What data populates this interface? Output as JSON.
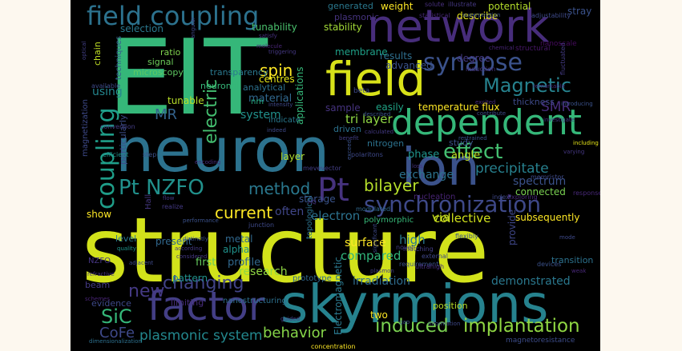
{
  "canvas": {
    "background": "#000000",
    "page_background": "#fdf8ef"
  },
  "words": [
    {
      "text": "structure",
      "color": "#d2e21b"
    },
    {
      "text": "neuron",
      "color": "#2c728e"
    },
    {
      "text": "EIT",
      "color": "#35b779"
    },
    {
      "text": "network",
      "color": "#472d7b"
    },
    {
      "text": "skyrmions",
      "color": "#26828e"
    },
    {
      "text": "field",
      "color": "#d8e219"
    },
    {
      "text": "ion",
      "color": "#3b528b"
    },
    {
      "text": "dependent",
      "color": "#35b779"
    },
    {
      "text": "factor",
      "color": "#433e85"
    },
    {
      "text": "Pt",
      "color": "#46327e"
    },
    {
      "text": "field coupling",
      "color": "#2c728e"
    },
    {
      "text": "synchronization",
      "color": "#3e4989"
    },
    {
      "text": "synapse",
      "color": "#3b528b"
    },
    {
      "text": "Magnetic",
      "color": "#26828e"
    },
    {
      "text": "effect",
      "color": "#44bf70"
    },
    {
      "text": "coupling",
      "color": "#1f9e89"
    },
    {
      "text": "Pt NZFO",
      "color": "#21918c"
    },
    {
      "text": "induced",
      "color": "#7ad151"
    },
    {
      "text": "implantation",
      "color": "#90d743"
    },
    {
      "text": "changing",
      "color": "#414487"
    },
    {
      "text": "new",
      "color": "#443983"
    },
    {
      "text": "bilayer",
      "color": "#b5de2b"
    },
    {
      "text": "current",
      "color": "#fde725"
    },
    {
      "text": "method",
      "color": "#2a788e"
    },
    {
      "text": "electric",
      "color": "#44bf70"
    },
    {
      "text": "spin",
      "color": "#fde725"
    },
    {
      "text": "behavior",
      "color": "#86d549"
    },
    {
      "text": "SiC",
      "color": "#35b779"
    },
    {
      "text": "CoFe",
      "color": "#3e4989"
    },
    {
      "text": "plasmonic system",
      "color": "#23888e"
    },
    {
      "text": "precipitate",
      "color": "#27808e"
    },
    {
      "text": "spectrum",
      "color": "#3b528b"
    },
    {
      "text": "MR",
      "color": "#33638d"
    },
    {
      "text": "SMR",
      "color": "#472d7b"
    },
    {
      "text": "tri layer",
      "color": "#8fd744"
    },
    {
      "text": "exchange",
      "color": "#2c728e"
    },
    {
      "text": "high",
      "color": "#2a788e"
    },
    {
      "text": "collective",
      "color": "#d0e11c"
    },
    {
      "text": "using",
      "color": "#24868e"
    },
    {
      "text": "surface",
      "color": "#fde725"
    },
    {
      "text": "compared",
      "color": "#32b67a"
    },
    {
      "text": "electron",
      "color": "#2c728e"
    },
    {
      "text": "via",
      "color": "#c5e021"
    },
    {
      "text": "often",
      "color": "#404688"
    },
    {
      "text": "research",
      "color": "#90d743"
    },
    {
      "text": "irradiation",
      "color": "#2f6c8e"
    },
    {
      "text": "demonstrated",
      "color": "#2a788e"
    },
    {
      "text": "tunable",
      "color": "#b8de29"
    },
    {
      "text": "system",
      "color": "#21918c"
    },
    {
      "text": "material",
      "color": "#31688e"
    },
    {
      "text": "applications",
      "color": "#35b779"
    },
    {
      "text": "centres",
      "color": "#e2e418"
    },
    {
      "text": "results",
      "color": "#2e6f8e"
    },
    {
      "text": "advanced",
      "color": "#3b528b"
    },
    {
      "text": "degree",
      "color": "#443983"
    },
    {
      "text": "sample",
      "color": "#46337f"
    },
    {
      "text": "easily",
      "color": "#20a386"
    },
    {
      "text": "temperature flux",
      "color": "#fde725"
    },
    {
      "text": "phase",
      "color": "#1f948c"
    },
    {
      "text": "angle",
      "color": "#c2df23"
    },
    {
      "text": "storage",
      "color": "#3a548c"
    },
    {
      "text": "present",
      "color": "#31688e"
    },
    {
      "text": "first",
      "color": "#65cb5e"
    },
    {
      "text": "profile",
      "color": "#31688e"
    },
    {
      "text": "pattern",
      "color": "#21918c"
    },
    {
      "text": "metal",
      "color": "#31688e"
    },
    {
      "text": "alpha",
      "color": "#20928c"
    },
    {
      "text": "show",
      "color": "#fde725"
    },
    {
      "text": "level",
      "color": "#2a788e"
    },
    {
      "text": "beam",
      "color": "#443a83"
    },
    {
      "text": "evidence",
      "color": "#3e4989"
    },
    {
      "text": "limiting",
      "color": "#472c7a"
    },
    {
      "text": "Electromagnetic",
      "color": "#2a788e"
    },
    {
      "text": "provide",
      "color": "#3f4788"
    },
    {
      "text": "transition",
      "color": "#2c728e"
    },
    {
      "text": "subsequently",
      "color": "#fde725"
    },
    {
      "text": "connected",
      "color": "#7ad151"
    },
    {
      "text": "nucleation",
      "color": "#482475"
    },
    {
      "text": "position",
      "color": "#b8de29"
    },
    {
      "text": "two",
      "color": "#fde725"
    },
    {
      "text": "nanostructuring",
      "color": "#2d708e"
    },
    {
      "text": "selection",
      "color": "#2a788e"
    },
    {
      "text": "tunability",
      "color": "#4ac16d"
    },
    {
      "text": "stability",
      "color": "#a2da37"
    },
    {
      "text": "membrane",
      "color": "#1fa088"
    },
    {
      "text": "generated",
      "color": "#2a788e"
    },
    {
      "text": "weight",
      "color": "#fde725"
    },
    {
      "text": "plasmonic",
      "color": "#46337f"
    },
    {
      "text": "describe",
      "color": "#e5e419"
    },
    {
      "text": "potential",
      "color": "#b5de2b"
    },
    {
      "text": "stray",
      "color": "#3b528b"
    },
    {
      "text": "ratio",
      "color": "#7fd34e"
    },
    {
      "text": "signal",
      "color": "#6ccd5a"
    },
    {
      "text": "microscopy",
      "color": "#5ec962"
    },
    {
      "text": "techniques",
      "color": "#365c8d"
    },
    {
      "text": "chain",
      "color": "#c0df25"
    },
    {
      "text": "nm",
      "color": "#27ad81"
    },
    {
      "text": "analytical",
      "color": "#2c728e"
    },
    {
      "text": "thickness",
      "color": "#3e4a89"
    },
    {
      "text": "neuronal",
      "color": "#35b779"
    },
    {
      "text": "transparency",
      "color": "#2a788e"
    },
    {
      "text": "nitrogen",
      "color": "#2c728e"
    },
    {
      "text": "study",
      "color": "#3b528b"
    },
    {
      "text": "driven",
      "color": "#2c728e"
    },
    {
      "text": "indicate",
      "color": "#29798e"
    },
    {
      "text": "layer",
      "color": "#b2dd2d"
    },
    {
      "text": "particularly",
      "color": "#3d4e8a"
    },
    {
      "text": "polymorphic",
      "color": "#37b878"
    },
    {
      "text": "NZFO",
      "color": "#453581"
    },
    {
      "text": "magnetization",
      "color": "#3e4a89"
    },
    {
      "text": "Hall",
      "color": "#453781"
    },
    {
      "text": "prototype",
      "color": "#31688e"
    },
    {
      "text": "topological",
      "color": "#2c728e"
    },
    {
      "text": "available",
      "color": "#3e4989"
    },
    {
      "text": "conversion",
      "color": "#433d84"
    },
    {
      "text": "efficient",
      "color": "#21918c"
    },
    {
      "text": "quality",
      "color": "#1f968b"
    },
    {
      "text": "optical",
      "color": "#423f85"
    },
    {
      "text": "statistical",
      "color": "#482979"
    },
    {
      "text": "superposition",
      "color": "#3b528b"
    },
    {
      "text": "adjustability",
      "color": "#3e4a89"
    },
    {
      "text": "solute",
      "color": "#472f7d"
    },
    {
      "text": "illustrate",
      "color": "#453882"
    },
    {
      "text": "fluctuated",
      "color": "#443b84"
    },
    {
      "text": "structural",
      "color": "#481769"
    },
    {
      "text": "nanoscale",
      "color": "#460b5e"
    },
    {
      "text": "induction",
      "color": "#46327e"
    },
    {
      "text": "chemical",
      "color": "#482576"
    },
    {
      "text": "beta",
      "color": "#3e4a89"
    },
    {
      "text": "magnetoresistance",
      "color": "#3d4d8a"
    },
    {
      "text": "dimensionalization",
      "color": "#2d708e"
    },
    {
      "text": "concentration",
      "color": "#fde725"
    },
    {
      "text": "requirement",
      "color": "#3a538b"
    },
    {
      "text": "matching",
      "color": "#433d84"
    },
    {
      "text": "external",
      "color": "#3f4788"
    },
    {
      "text": "ultrahigh",
      "color": "#472e7c"
    },
    {
      "text": "devices",
      "color": "#3b528b"
    },
    {
      "text": "memristor",
      "color": "#3e4a89"
    },
    {
      "text": "response",
      "color": "#482878"
    },
    {
      "text": "index",
      "color": "#3f4889"
    },
    {
      "text": "Exploring",
      "color": "#482979"
    },
    {
      "text": "modulated",
      "color": "#31688e"
    },
    {
      "text": "junction",
      "color": "#3e4a89"
    },
    {
      "text": "performance",
      "color": "#3b528b"
    },
    {
      "text": "realize",
      "color": "#443983"
    },
    {
      "text": "encoding",
      "color": "#472d7b"
    },
    {
      "text": "step",
      "color": "#3b528b"
    },
    {
      "text": "polaritons",
      "color": "#3e4989"
    },
    {
      "text": "mevevector",
      "color": "#433e85"
    },
    {
      "text": "flexibly",
      "color": "#3b528b"
    },
    {
      "text": "novel",
      "color": "#433e85"
    },
    {
      "text": "significant",
      "color": "#3e4989"
    },
    {
      "text": "according",
      "color": "#443983"
    },
    {
      "text": "adjacent",
      "color": "#3e4a89"
    },
    {
      "text": "distinctly",
      "color": "#3b528b"
    },
    {
      "text": "considered",
      "color": "#453882"
    },
    {
      "text": "refractive",
      "color": "#46337f"
    },
    {
      "text": "schemes",
      "color": "#482475"
    },
    {
      "text": "guided",
      "color": "#433e85"
    },
    {
      "text": "mode",
      "color": "#3e4989"
    },
    {
      "text": "weak",
      "color": "#482878"
    },
    {
      "text": "introducing",
      "color": "#3b528b"
    },
    {
      "text": "varying",
      "color": "#453781"
    },
    {
      "text": "including",
      "color": "#e5e419"
    },
    {
      "text": "investigate",
      "color": "#443983"
    },
    {
      "text": "excited",
      "color": "#472d7b"
    },
    {
      "text": "contribute",
      "color": "#3e4a89"
    },
    {
      "text": "described",
      "color": "#3b528b"
    },
    {
      "text": "calculated",
      "color": "#443a83"
    },
    {
      "text": "intensity",
      "color": "#3e4989"
    },
    {
      "text": "satisfy",
      "color": "#46327e"
    },
    {
      "text": "angular",
      "color": "#3f4889"
    },
    {
      "text": "triggering",
      "color": "#453882"
    },
    {
      "text": "molecule",
      "color": "#482576"
    },
    {
      "text": "restrained",
      "color": "#3b528b"
    },
    {
      "text": "loss",
      "color": "#46337f"
    },
    {
      "text": "benefit",
      "color": "#433e85"
    },
    {
      "text": "exceed",
      "color": "#3b528b"
    },
    {
      "text": "indeed",
      "color": "#3e4a89"
    },
    {
      "text": "flow",
      "color": "#443983"
    },
    {
      "text": "HQ",
      "color": "#46327e"
    },
    {
      "text": "gap",
      "color": "#3b528b"
    },
    {
      "text": "information",
      "color": "#3e4989"
    },
    {
      "text": "plasmon",
      "color": "#433e85"
    },
    {
      "text": "remarkable",
      "color": "#472d7b"
    }
  ]
}
